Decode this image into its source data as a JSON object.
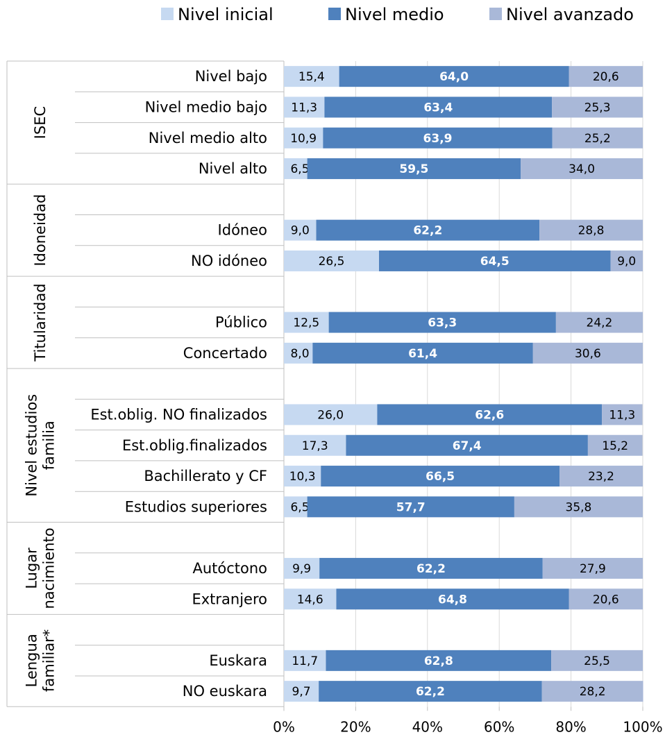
{
  "chart_data": {
    "type": "bar",
    "orientation": "horizontal",
    "stacked": "percent",
    "title": "",
    "xlabel": "",
    "ylabel": "",
    "xlim": [
      0,
      100
    ],
    "x_ticks": [
      "0%",
      "20%",
      "40%",
      "60%",
      "80%",
      "100%"
    ],
    "grid": true,
    "legend": {
      "placement": "top",
      "entries": [
        "Nivel inicial",
        "Nivel medio",
        "Nivel avanzado"
      ]
    },
    "colors": {
      "inicial": "#c6d9f1",
      "medio": "#4f81bd",
      "avanzado": "#a9b8d8",
      "grid": "#d9d9d9",
      "separator": "#bfbfbf"
    },
    "series": [
      {
        "name": "Nivel inicial"
      },
      {
        "name": "Nivel medio"
      },
      {
        "name": "Nivel avanzado"
      }
    ],
    "groups": [
      {
        "label": "ISEC",
        "rows": [
          {
            "category": "Nivel bajo",
            "values": [
              15.4,
              64.0,
              20.6
            ],
            "labels": [
              "15,4",
              "64,0",
              "20,6"
            ]
          },
          {
            "category": "Nivel medio bajo",
            "values": [
              11.3,
              63.4,
              25.3
            ],
            "labels": [
              "11,3",
              "63,4",
              "25,3"
            ]
          },
          {
            "category": "Nivel medio alto",
            "values": [
              10.9,
              63.9,
              25.2
            ],
            "labels": [
              "10,9",
              "63,9",
              "25,2"
            ]
          },
          {
            "category": "Nivel alto",
            "values": [
              6.5,
              59.5,
              34.0
            ],
            "labels": [
              "6,5",
              "59,5",
              "34,0"
            ]
          }
        ]
      },
      {
        "label": "Idoneidad",
        "rows": [
          {
            "category": "",
            "values": null
          },
          {
            "category": "Idóneo",
            "values": [
              9.0,
              62.2,
              28.8
            ],
            "labels": [
              "9,0",
              "62,2",
              "28,8"
            ]
          },
          {
            "category": "NO idóneo",
            "values": [
              26.5,
              64.5,
              9.0
            ],
            "labels": [
              "26,5",
              "64,5",
              "9,0"
            ]
          }
        ]
      },
      {
        "label": "Titularidad",
        "rows": [
          {
            "category": "",
            "values": null
          },
          {
            "category": "Público",
            "values": [
              12.5,
              63.3,
              24.2
            ],
            "labels": [
              "12,5",
              "63,3",
              "24,2"
            ]
          },
          {
            "category": "Concertado",
            "values": [
              8.0,
              61.4,
              30.6
            ],
            "labels": [
              "8,0",
              "61,4",
              "30,6"
            ]
          }
        ]
      },
      {
        "label": "Nivel estudios familia",
        "label_lines": [
          "Nivel estudios",
          "familia"
        ],
        "rows": [
          {
            "category": "",
            "values": null
          },
          {
            "category": "Est.oblig. NO finalizados",
            "values": [
              26.0,
              62.6,
              11.3
            ],
            "labels": [
              "26,0",
              "62,6",
              "11,3"
            ]
          },
          {
            "category": "Est.oblig.finalizados",
            "values": [
              17.3,
              67.4,
              15.2
            ],
            "labels": [
              "17,3",
              "67,4",
              "15,2"
            ]
          },
          {
            "category": "Bachillerato y CF",
            "values": [
              10.3,
              66.5,
              23.2
            ],
            "labels": [
              "10,3",
              "66,5",
              "23,2"
            ]
          },
          {
            "category": "Estudios superiores",
            "values": [
              6.5,
              57.7,
              35.8
            ],
            "labels": [
              "6,5",
              "57,7",
              "35,8"
            ]
          }
        ]
      },
      {
        "label": "Lugar nacimiento",
        "label_lines": [
          "Lugar",
          "nacimiento"
        ],
        "rows": [
          {
            "category": "",
            "values": null
          },
          {
            "category": "Autóctono",
            "values": [
              9.9,
              62.2,
              27.9
            ],
            "labels": [
              "9,9",
              "62,2",
              "27,9"
            ]
          },
          {
            "category": "Extranjero",
            "values": [
              14.6,
              64.8,
              20.6
            ],
            "labels": [
              "14,6",
              "64,8",
              "20,6"
            ]
          }
        ]
      },
      {
        "label": "Lengua familiar*",
        "label_lines": [
          "Lengua",
          "familiar*"
        ],
        "rows": [
          {
            "category": "",
            "values": null
          },
          {
            "category": "Euskara",
            "values": [
              11.7,
              62.8,
              25.5
            ],
            "labels": [
              "11,7",
              "62,8",
              "25,5"
            ]
          },
          {
            "category": "NO euskara",
            "values": [
              9.7,
              62.2,
              28.2
            ],
            "labels": [
              "9,7",
              "62,2",
              "28,2"
            ]
          }
        ]
      }
    ]
  }
}
